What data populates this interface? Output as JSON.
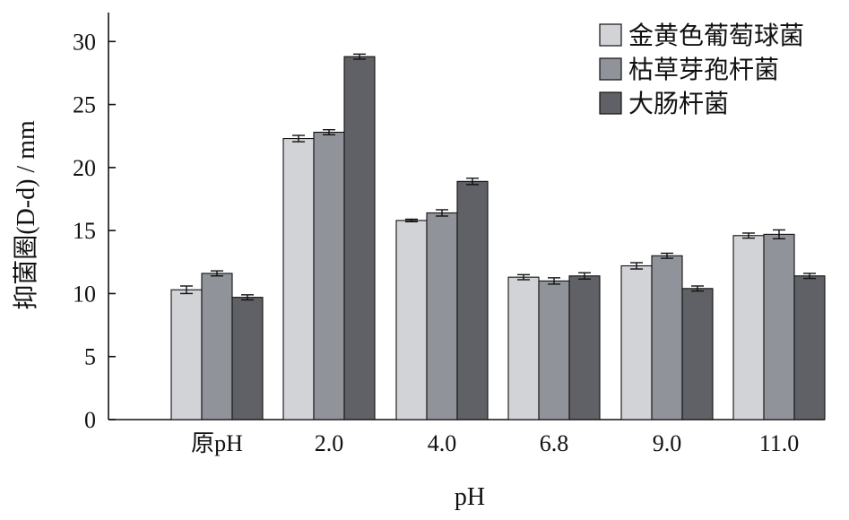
{
  "chart_data": {
    "type": "bar",
    "categories": [
      "原pH",
      "2.0",
      "4.0",
      "6.8",
      "9.0",
      "11.0"
    ],
    "series": [
      {
        "name": "金黄色葡萄球菌",
        "color": "#d2d3d7",
        "values": [
          10.3,
          22.3,
          15.8,
          11.3,
          12.2,
          14.6
        ],
        "errors": [
          0.3,
          0.25,
          0.1,
          0.2,
          0.25,
          0.2
        ]
      },
      {
        "name": "枯草芽孢杆菌",
        "color": "#90939a",
        "values": [
          11.6,
          22.8,
          16.4,
          11.0,
          13.0,
          14.7
        ],
        "errors": [
          0.2,
          0.2,
          0.25,
          0.25,
          0.2,
          0.35
        ]
      },
      {
        "name": "大肠杆菌",
        "color": "#606166",
        "values": [
          9.7,
          28.8,
          18.9,
          11.4,
          10.4,
          11.4
        ],
        "errors": [
          0.2,
          0.2,
          0.25,
          0.25,
          0.2,
          0.2
        ]
      }
    ],
    "xlabel": "pH",
    "ylabel": "抑菌圈(D-d) / mm",
    "ylim": [
      0,
      32
    ],
    "yticks": [
      0,
      5,
      10,
      15,
      20,
      25,
      30
    ],
    "grid": false,
    "legend_position": "top-right"
  }
}
